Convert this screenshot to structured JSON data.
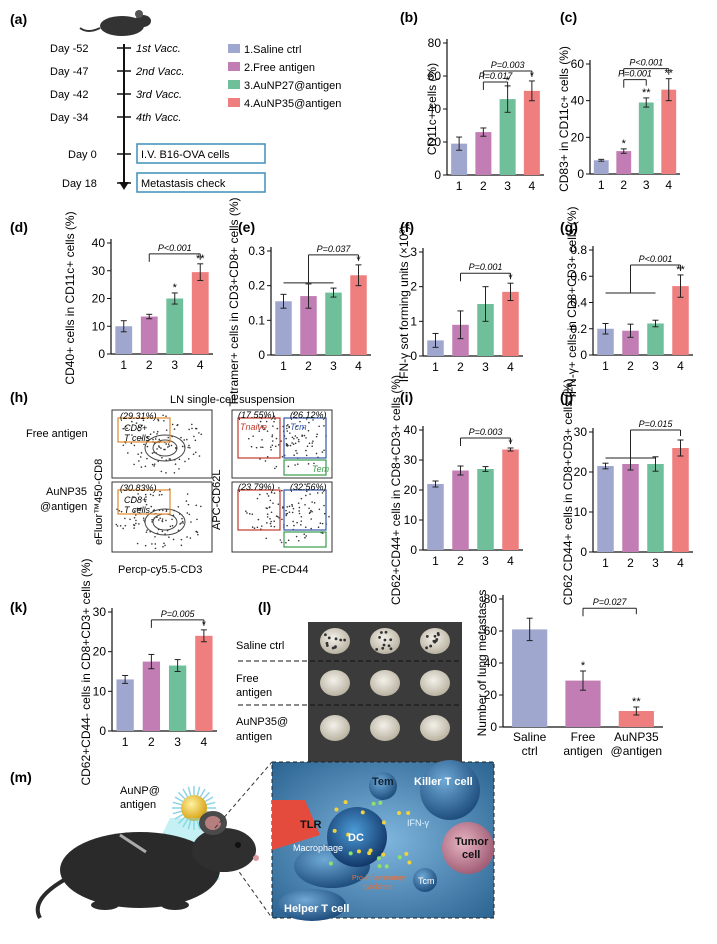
{
  "panel_a": {
    "label": "(a)",
    "timeline": [
      {
        "day": "Day -52",
        "event": "1st Vacc."
      },
      {
        "day": "Day -47",
        "event": "2nd Vacc."
      },
      {
        "day": "Day -42",
        "event": "3rd Vacc."
      },
      {
        "day": "Day -34",
        "event": "4th Vacc."
      },
      {
        "day": "Day 0",
        "event": "I.V. B16-OVA cells"
      },
      {
        "day": "Day 18",
        "event": "Metastasis check"
      }
    ],
    "legend": [
      "1.Saline ctrl",
      "2.Free antigen",
      "3.AuNP27@antigen",
      "4.AuNP35@antigen"
    ]
  },
  "colors": {
    "g1": "#9fa7cf",
    "g2": "#c27eb4",
    "g3": "#6fbf9a",
    "g4": "#ef7f7f",
    "box": "#3f8fb8"
  },
  "panel_h": {
    "label": "(h)",
    "title": "LN single-cell suspension",
    "row1": "Free antigen",
    "row2a": "AuNP35",
    "row2b": "@antigen",
    "y1": "eFluor™450-CD8",
    "x1": "Percp-cy5.5-CD3",
    "y2": "APC-CD62L",
    "x2": "PE-CD44",
    "gate_cd8": "CD8+",
    "gate_t": "T cells",
    "pct_cd8_1": "(29.31%)",
    "pct_cd8_2": "(30.83%)",
    "pct_n_1": "(17.55%)",
    "pct_cm_1": "(26.12%)",
    "pct_n_2": "(23.79%)",
    "pct_cm_2": "(32.56%)",
    "tnaive": "Tnaive",
    "tcm": "Tcm",
    "tem": "Tem"
  },
  "panel_l": {
    "label": "(l)",
    "rows": [
      "Saline ctrl",
      "Free",
      "antigen",
      "AuNP35@",
      "antigen"
    ]
  },
  "panel_m": {
    "label": "(m)",
    "mouse_label1": "AuNP@",
    "mouse_label2": "antigen",
    "cells": {
      "tem": "Tem",
      "killer": "Killer T cell",
      "tlr": "TLR",
      "dc": "DC",
      "macrophage": "Macrophage",
      "ifn": "IFN-γ",
      "tumor1": "Tumor",
      "tumor2": "cell",
      "pro1": "Pro-inflammatory",
      "pro2": "cytokines",
      "tcm": "Tcm",
      "helper": "Helper T cell"
    }
  },
  "chart_data": [
    {
      "id": "b",
      "label": "(b)",
      "type": "bar",
      "categories": [
        "1",
        "2",
        "3",
        "4"
      ],
      "values": [
        19,
        26,
        46,
        51
      ],
      "errors": [
        4,
        2.5,
        8,
        6
      ],
      "ylim": [
        0,
        80
      ],
      "yticks": [
        0,
        20,
        40,
        60,
        80
      ],
      "ylabel": "CD11c+ cells (%)",
      "stars": [
        "",
        "",
        "*",
        "*"
      ],
      "pvalues": [
        "P=0.003",
        "P=0.017"
      ]
    },
    {
      "id": "c",
      "label": "(c)",
      "type": "bar",
      "categories": [
        "1",
        "2",
        "3",
        "4"
      ],
      "values": [
        7.5,
        12.5,
        39,
        46
      ],
      "errors": [
        0.5,
        1.2,
        2.5,
        6
      ],
      "ylim": [
        0,
        60
      ],
      "yticks": [
        0,
        20,
        40,
        60
      ],
      "ylabel": "CD83+ in CD11c+ cells (%)",
      "stars": [
        "",
        "*",
        "**",
        "**"
      ],
      "pvalues": [
        "P<0.001",
        "P=0.001"
      ]
    },
    {
      "id": "d",
      "label": "(d)",
      "type": "bar",
      "categories": [
        "1",
        "2",
        "3",
        "4"
      ],
      "values": [
        10,
        13.5,
        20,
        29.5
      ],
      "errors": [
        2,
        0.8,
        2,
        3
      ],
      "ylim": [
        0,
        40
      ],
      "yticks": [
        0,
        10,
        20,
        30,
        40
      ],
      "ylabel": "CD40+ cells in CD11c+ cells (%)",
      "stars": [
        "",
        "",
        "*",
        "**"
      ],
      "pvalues": [
        "P<0.001"
      ]
    },
    {
      "id": "e",
      "label": "(e)",
      "type": "bar",
      "categories": [
        "1",
        "2",
        "3",
        "4"
      ],
      "values": [
        0.155,
        0.17,
        0.18,
        0.23
      ],
      "errors": [
        0.02,
        0.035,
        0.013,
        0.03
      ],
      "ylim": [
        0,
        0.3
      ],
      "yticks": [
        0,
        0.1,
        0.2,
        0.3
      ],
      "ylabel": "Tetramer+ cells in CD3+CD8+ cells (%)",
      "stars": [
        "",
        "",
        "",
        "*"
      ],
      "pvalues": [
        "P=0.037"
      ]
    },
    {
      "id": "f",
      "label": "(f)",
      "type": "bar",
      "categories": [
        "1",
        "2",
        "3",
        "4"
      ],
      "values": [
        0.45,
        0.9,
        1.5,
        1.85
      ],
      "errors": [
        0.2,
        0.4,
        0.5,
        0.25
      ],
      "ylim": [
        0,
        3
      ],
      "yticks": [
        0,
        1,
        2,
        3
      ],
      "ylabel": "IFN-γ sot forming units (×10³)",
      "stars": [
        "",
        "",
        "",
        "*"
      ],
      "pvalues": [
        "P=0.001"
      ]
    },
    {
      "id": "g",
      "label": "(g)",
      "type": "bar",
      "categories": [
        "1",
        "2",
        "3",
        "4"
      ],
      "values": [
        0.2,
        0.185,
        0.24,
        0.525
      ],
      "errors": [
        0.04,
        0.05,
        0.025,
        0.085
      ],
      "ylim": [
        0,
        0.8
      ],
      "yticks": [
        0,
        0.2,
        0.4,
        0.6,
        0.8
      ],
      "ylabel": "IFN-γ+ cells in CD8+CD3+ cells (%)",
      "stars": [
        "",
        "",
        "",
        "**"
      ],
      "pvalues": [
        "P<0.001"
      ]
    },
    {
      "id": "i",
      "label": "(i)",
      "type": "bar",
      "categories": [
        "1",
        "2",
        "3",
        "4"
      ],
      "values": [
        22,
        26.5,
        27,
        33.5
      ],
      "errors": [
        1,
        1.5,
        0.8,
        0.5
      ],
      "ylim": [
        0,
        40
      ],
      "yticks": [
        0,
        10,
        20,
        30,
        40
      ],
      "ylabel": "CD62+CD44+ cells in CD8+CD3+ cells (%)",
      "stars": [
        "",
        "",
        "",
        "*"
      ],
      "pvalues": [
        "P=0.003"
      ]
    },
    {
      "id": "j",
      "label": "(j)",
      "type": "bar",
      "categories": [
        "1",
        "2",
        "3",
        "4"
      ],
      "values": [
        21.5,
        22,
        22,
        26
      ],
      "errors": [
        0.7,
        1.5,
        1.8,
        2
      ],
      "ylim": [
        0,
        30
      ],
      "yticks": [
        0,
        10,
        20,
        30
      ],
      "ylabel": "CD62 CD44+ cells in CD8+CD3+ cells (%)",
      "stars": [
        "",
        "",
        "",
        ""
      ],
      "pvalues": [
        "P=0.015"
      ]
    },
    {
      "id": "k",
      "label": "(k)",
      "type": "bar",
      "categories": [
        "1",
        "2",
        "3",
        "4"
      ],
      "values": [
        13,
        17.5,
        16.5,
        24
      ],
      "errors": [
        1,
        1.8,
        1.5,
        1.5
      ],
      "ylim": [
        0,
        30
      ],
      "yticks": [
        0,
        10,
        20,
        30
      ],
      "ylabel": "CD62+CD44- cells in CD8+CD3+ cells (%)",
      "stars": [
        "",
        "",
        "",
        "*"
      ],
      "pvalues": [
        "P=0.005"
      ]
    },
    {
      "id": "l2",
      "label": "",
      "type": "bar",
      "categories": [
        "Saline ctrl",
        "Free antigen",
        "AuNP35 @antigen"
      ],
      "values": [
        61,
        29,
        10
      ],
      "errors": [
        7,
        6,
        2.5
      ],
      "ylim": [
        0,
        80
      ],
      "yticks": [
        0,
        20,
        40,
        60,
        80
      ],
      "ylabel": "Number of lung metastases",
      "stars": [
        "",
        "*",
        "**"
      ],
      "pvalues": [
        "P=0.027"
      ]
    }
  ]
}
